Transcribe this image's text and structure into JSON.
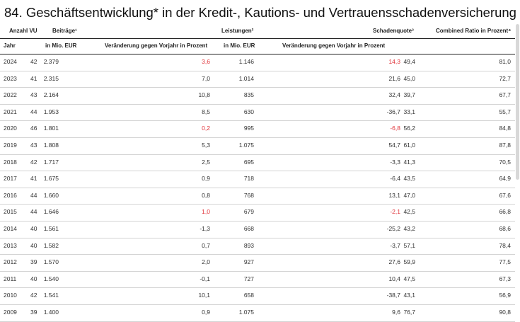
{
  "title": "84. Geschäftsentwicklung* in der Kredit-, Kautions- und Vertrauensschadenversicherung",
  "header_top": {
    "anzahl_vu": "Anzahl VU",
    "beitraege": "Beiträge¹",
    "leistungen": "Leistungen²",
    "schadenquote": "Schadenquote³",
    "combined_ratio": "Combined Ratio in Prozent⁴"
  },
  "header_sub": {
    "jahr": "Jahr",
    "beitraege_unit": "in Mio. EUR",
    "beitraege_change": "Veränderung gegen Vorjahr in Prozent",
    "leistungen_unit": "in Mio. EUR",
    "leistungen_change": "Veränderung gegen Vorjahr in Prozent"
  },
  "colors": {
    "highlight_red": "#e0343a",
    "text": "#333333"
  },
  "rows": [
    {
      "jahr": "2024",
      "vu": "42",
      "beitraege": "2.379",
      "b_change": "3,6",
      "b_red": true,
      "leistungen": "1.146",
      "l_change": "14,3",
      "l_red": true,
      "schadenquote": "49,4",
      "cr": "81,0"
    },
    {
      "jahr": "2023",
      "vu": "41",
      "beitraege": "2.315",
      "b_change": "7,0",
      "b_red": false,
      "leistungen": "1.014",
      "l_change": "21,6",
      "l_red": false,
      "schadenquote": "45,0",
      "cr": "72,7"
    },
    {
      "jahr": "2022",
      "vu": "43",
      "beitraege": "2.164",
      "b_change": "10,8",
      "b_red": false,
      "leistungen": "835",
      "l_change": "32,4",
      "l_red": false,
      "schadenquote": "39,7",
      "cr": "67,7"
    },
    {
      "jahr": "2021",
      "vu": "44",
      "beitraege": "1.953",
      "b_change": "8,5",
      "b_red": false,
      "leistungen": "630",
      "l_change": "-36,7",
      "l_red": false,
      "schadenquote": "33,1",
      "cr": "55,7"
    },
    {
      "jahr": "2020",
      "vu": "46",
      "beitraege": "1.801",
      "b_change": "0,2",
      "b_red": true,
      "leistungen": "995",
      "l_change": "-6,8",
      "l_red": true,
      "schadenquote": "56,2",
      "cr": "84,8"
    },
    {
      "jahr": "2019",
      "vu": "43",
      "beitraege": "1.808",
      "b_change": "5,3",
      "b_red": false,
      "leistungen": "1.075",
      "l_change": "54,7",
      "l_red": false,
      "schadenquote": "61,0",
      "cr": "87,8"
    },
    {
      "jahr": "2018",
      "vu": "42",
      "beitraege": "1.717",
      "b_change": "2,5",
      "b_red": false,
      "leistungen": "695",
      "l_change": "-3,3",
      "l_red": false,
      "schadenquote": "41,3",
      "cr": "70,5"
    },
    {
      "jahr": "2017",
      "vu": "41",
      "beitraege": "1.675",
      "b_change": "0,9",
      "b_red": false,
      "leistungen": "718",
      "l_change": "-6,4",
      "l_red": false,
      "schadenquote": "43,5",
      "cr": "64,9"
    },
    {
      "jahr": "2016",
      "vu": "44",
      "beitraege": "1.660",
      "b_change": "0,8",
      "b_red": false,
      "leistungen": "768",
      "l_change": "13,1",
      "l_red": false,
      "schadenquote": "47,0",
      "cr": "67,6"
    },
    {
      "jahr": "2015",
      "vu": "44",
      "beitraege": "1.646",
      "b_change": "1,0",
      "b_red": true,
      "leistungen": "679",
      "l_change": "-2,1",
      "l_red": true,
      "schadenquote": "42,5",
      "cr": "66,8"
    },
    {
      "jahr": "2014",
      "vu": "40",
      "beitraege": "1.561",
      "b_change": "-1,3",
      "b_red": false,
      "leistungen": "668",
      "l_change": "-25,2",
      "l_red": false,
      "schadenquote": "43,2",
      "cr": "68,6"
    },
    {
      "jahr": "2013",
      "vu": "40",
      "beitraege": "1.582",
      "b_change": "0,7",
      "b_red": false,
      "leistungen": "893",
      "l_change": "-3,7",
      "l_red": false,
      "schadenquote": "57,1",
      "cr": "78,4"
    },
    {
      "jahr": "2012",
      "vu": "39",
      "beitraege": "1.570",
      "b_change": "2,0",
      "b_red": false,
      "leistungen": "927",
      "l_change": "27,6",
      "l_red": false,
      "schadenquote": "59,9",
      "cr": "77,5"
    },
    {
      "jahr": "2011",
      "vu": "40",
      "beitraege": "1.540",
      "b_change": "-0,1",
      "b_red": false,
      "leistungen": "727",
      "l_change": "10,4",
      "l_red": false,
      "schadenquote": "47,5",
      "cr": "67,3"
    },
    {
      "jahr": "2010",
      "vu": "42",
      "beitraege": "1.541",
      "b_change": "10,1",
      "b_red": false,
      "leistungen": "658",
      "l_change": "-38,7",
      "l_red": false,
      "schadenquote": "43,1",
      "cr": "56,9"
    },
    {
      "jahr": "2009",
      "vu": "39",
      "beitraege": "1.400",
      "b_change": "0,9",
      "b_red": false,
      "leistungen": "1.075",
      "l_change": "9,6",
      "l_red": false,
      "schadenquote": "76,7",
      "cr": "90,8"
    }
  ]
}
